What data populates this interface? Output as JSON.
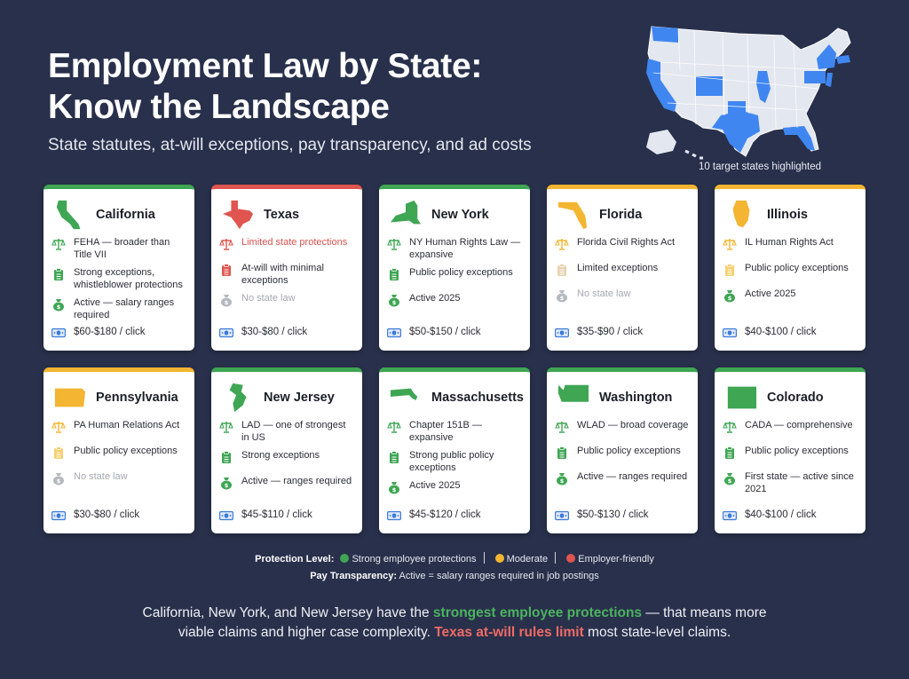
{
  "header": {
    "title_line1": "Employment Law by State:",
    "title_line2": "Know the Landscape",
    "subtitle": "State statutes, at-will exceptions, pay transparency, and ad costs"
  },
  "map": {
    "caption": "10 target states highlighted",
    "highlight_color": "#3f86f0",
    "base_color": "#e3e7ef",
    "highlighted_states": [
      "Washington",
      "California",
      "Colorado",
      "Texas",
      "Illinois",
      "Florida",
      "New York",
      "Pennsylvania",
      "New Jersey",
      "Massachusetts"
    ]
  },
  "colors": {
    "strong": "#3fa654",
    "moderate": "#f3b532",
    "employer_friendly": "#e0554f",
    "cost_icon": "#3b7ad8",
    "muted": "#b5b8be"
  },
  "cards": [
    {
      "state": "California",
      "level": "green",
      "statute": "FEHA — broader than Title VII",
      "at_will": "Strong exceptions, whistleblower protections",
      "pay": "Active — salary ranges required",
      "pay_status": "active",
      "cost": "$60-$180 / click"
    },
    {
      "state": "Texas",
      "level": "red",
      "statute": "Limited state protections",
      "at_will": "At-will with minimal exceptions",
      "pay": "No state law",
      "pay_status": "none",
      "cost": "$30-$80 / click"
    },
    {
      "state": "New York",
      "level": "green",
      "statute": "NY Human Rights Law — expansive",
      "at_will": "Public policy exceptions",
      "pay": "Active 2025",
      "pay_status": "active",
      "cost": "$50-$150 / click"
    },
    {
      "state": "Florida",
      "level": "yellow",
      "statute": "Florida Civil Rights Act",
      "at_will": "Limited exceptions",
      "pay": "No state law",
      "pay_status": "none",
      "cost": "$35-$90 / click"
    },
    {
      "state": "Illinois",
      "level": "yellow",
      "statute": "IL Human Rights Act",
      "at_will": "Public policy exceptions",
      "pay": "Active 2025",
      "pay_status": "active",
      "cost": "$40-$100 / click"
    },
    {
      "state": "Pennsylvania",
      "level": "yellow",
      "statute": "PA Human Relations Act",
      "at_will": "Public policy exceptions",
      "pay": "No state law",
      "pay_status": "none",
      "cost": "$30-$80 / click"
    },
    {
      "state": "New Jersey",
      "level": "green",
      "statute": "LAD — one of strongest in US",
      "at_will": "Strong exceptions",
      "pay": "Active — ranges required",
      "pay_status": "active",
      "cost": "$45-$110 / click"
    },
    {
      "state": "Massachusetts",
      "level": "green",
      "statute": "Chapter 151B — expansive",
      "at_will": "Strong public policy exceptions",
      "pay": "Active 2025",
      "pay_status": "active",
      "cost": "$45-$120 / click"
    },
    {
      "state": "Washington",
      "level": "green",
      "statute": "WLAD — broad coverage",
      "at_will": "Public policy exceptions",
      "pay": "Active — ranges required",
      "pay_status": "active",
      "cost": "$50-$130 / click"
    },
    {
      "state": "Colorado",
      "level": "green",
      "statute": "CADA — comprehensive",
      "at_will": "Public policy exceptions",
      "pay": "First state — active since 2021",
      "pay_status": "active",
      "cost": "$40-$100 / click"
    }
  ],
  "legend": {
    "protection_label": "Protection Level:",
    "strong": "Strong employee protections",
    "moderate": "Moderate",
    "employer_friendly": "Employer-friendly",
    "pay_label": "Pay Transparency:",
    "pay_text": "Active = salary ranges required in job postings"
  },
  "footer": {
    "part1": "California, New York, and New Jersey have the ",
    "highlight_green": "strongest employee protections",
    "part2": " — that means more",
    "part3": "viable claims and higher case complexity. ",
    "highlight_red": "Texas at-will rules limit",
    "part4": " most state-level claims."
  },
  "icons": {
    "statute": "scales-icon",
    "at_will": "clipboard-icon",
    "pay": "money-bag-icon",
    "cost": "banknote-icon"
  }
}
